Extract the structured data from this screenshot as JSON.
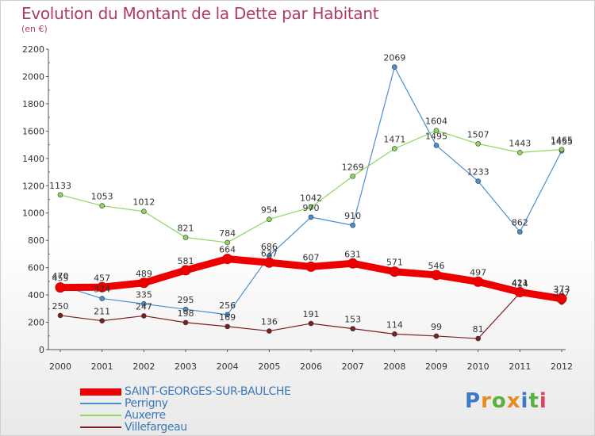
{
  "title": "Evolution du Montant de la Dette par Habitant",
  "subtitle": "(en €)",
  "logo_text": "Proxiti",
  "colors": {
    "title": "#b23a6a",
    "axis_text": "#333333",
    "legend_text": "#3a78b8",
    "grid_marks": "#e03060"
  },
  "chart_data": {
    "type": "line",
    "title": "Evolution du Montant de la Dette par Habitant",
    "ylabel": "(en €)",
    "xlabel": "",
    "x": [
      2000,
      2001,
      2002,
      2003,
      2004,
      2005,
      2006,
      2007,
      2008,
      2009,
      2010,
      2011,
      2012
    ],
    "ylim": [
      0,
      2200
    ],
    "yticks": [
      0,
      200,
      400,
      600,
      800,
      1000,
      1200,
      1400,
      1600,
      1800,
      2000,
      2200
    ],
    "grid": false,
    "legend_position": "bottom-left",
    "series": [
      {
        "name": "SAINT-GEORGES-SUR-BAULCHE",
        "color": "#ee0000",
        "line_width": 9,
        "values": [
          455,
          457,
          489,
          581,
          664,
          637,
          607,
          631,
          571,
          546,
          497,
          421,
          373
        ]
      },
      {
        "name": "Perrigny",
        "color": "#4a8fd0",
        "line_width": 1.2,
        "values": [
          470,
          374,
          335,
          295,
          256,
          686,
          970,
          910,
          2069,
          1495,
          1233,
          862,
          1455
        ]
      },
      {
        "name": "Auxerre",
        "color": "#8ed860",
        "line_width": 1.2,
        "values": [
          1133,
          1053,
          1012,
          821,
          784,
          954,
          1042,
          1269,
          1471,
          1604,
          1507,
          1443,
          1465
        ]
      },
      {
        "name": "Villefargeau",
        "color": "#7a2020",
        "line_width": 1.2,
        "values": [
          250,
          211,
          247,
          198,
          169,
          136,
          191,
          153,
          114,
          99,
          81,
          414,
          347
        ]
      }
    ]
  }
}
